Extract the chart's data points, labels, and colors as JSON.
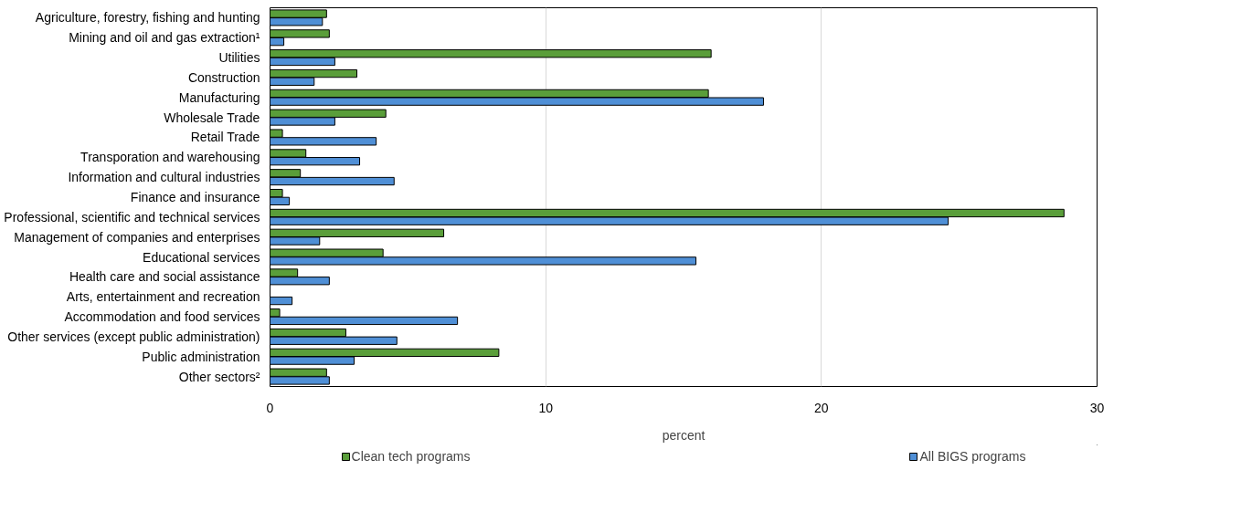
{
  "chart_data": {
    "type": "bar",
    "orientation": "horizontal",
    "xlabel": "percent",
    "categories": [
      "Agriculture, forestry, fishing and hunting",
      "Mining and oil and gas extraction¹",
      "Utilities",
      "Construction",
      "Manufacturing",
      "Wholesale Trade",
      "Retail Trade",
      "Transporation and warehousing",
      "Information and cultural industries",
      "Finance and insurance",
      "Professional, scientific and technical services",
      "Management of companies and enterprises",
      "Educational services",
      "Health care and social assistance",
      "Arts, entertainment and recreation",
      "Accommodation and food services",
      "Other services (except public administration)",
      "Public administration",
      "Other sectors²"
    ],
    "series": [
      {
        "name": "Clean tech programs",
        "color": "#5a9e3a",
        "values": [
          2.05,
          2.15,
          16.0,
          3.15,
          15.9,
          4.2,
          0.45,
          1.3,
          1.1,
          0.45,
          28.8,
          6.3,
          4.1,
          1.0,
          null,
          0.35,
          2.75,
          8.3,
          2.05
        ]
      },
      {
        "name": "All BIGS programs",
        "color": "#4f8fd6",
        "values": [
          1.9,
          0.5,
          2.35,
          1.6,
          17.9,
          2.35,
          3.85,
          3.25,
          4.5,
          0.7,
          24.6,
          1.8,
          15.45,
          2.15,
          0.8,
          6.8,
          4.6,
          3.05,
          2.15
        ]
      }
    ],
    "xlim": [
      0,
      30
    ],
    "xticks": [
      0,
      10,
      20,
      30
    ],
    "grid": "x",
    "legend": "bottom"
  }
}
